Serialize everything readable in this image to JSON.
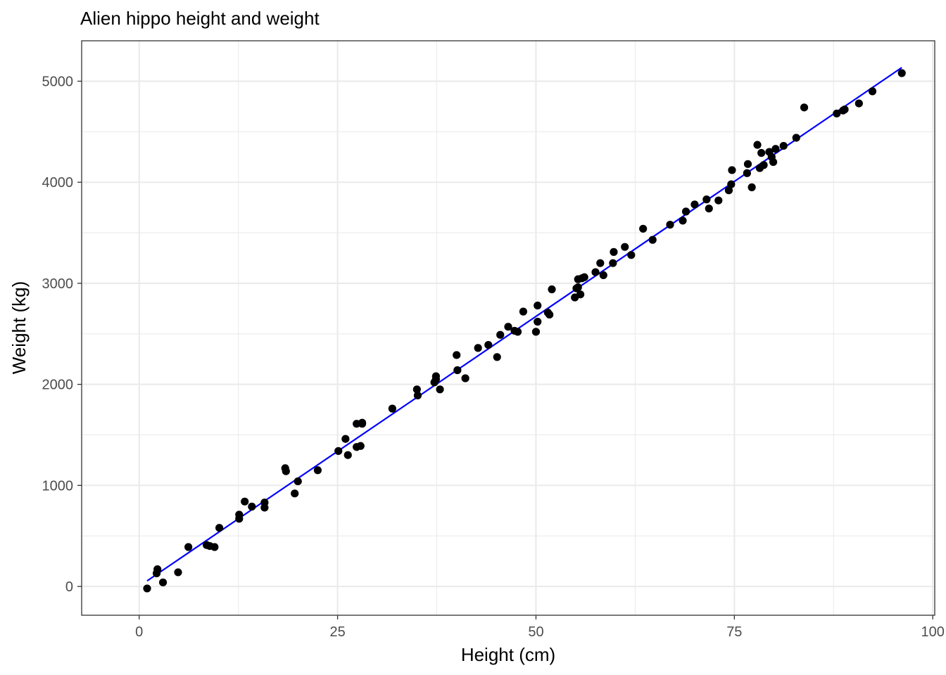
{
  "chart_data": {
    "type": "scatter",
    "title": "Alien hippo height and weight",
    "subtitle": "",
    "xlabel": "Height (cm)",
    "ylabel": "Weight (kg)",
    "xlim": [
      -7.25,
      100.25
    ],
    "ylim": [
      -285,
      5400
    ],
    "x_ticks": [
      0,
      25,
      50,
      75,
      100
    ],
    "y_ticks": [
      0,
      1000,
      2000,
      3000,
      4000,
      5000
    ],
    "x_tick_labels": [
      "0",
      "25",
      "50",
      "75",
      "100"
    ],
    "y_tick_labels": [
      "0",
      "1000",
      "2000",
      "3000",
      "4000",
      "5000"
    ],
    "grid": true,
    "legend": "none",
    "colors": {
      "points": "#000000",
      "fit_line": "#0000ff",
      "grid": "#ebebeb",
      "panel_border": "#333333"
    },
    "series": [
      {
        "kind": "points",
        "x": [
          1.0,
          2.2,
          2.3,
          3.0,
          4.9,
          6.2,
          8.5,
          8.9,
          9.5,
          10.1,
          12.6,
          12.6,
          13.3,
          14.2,
          15.8,
          15.8,
          18.4,
          18.5,
          19.6,
          20.0,
          22.5,
          25.1,
          26.0,
          26.3,
          27.4,
          27.4,
          27.9,
          28.1,
          28.1,
          31.9,
          35.0,
          35.1,
          37.2,
          37.4,
          37.4,
          37.9,
          40.0,
          40.1,
          41.1,
          42.7,
          44.0,
          45.1,
          45.5,
          46.5,
          47.3,
          47.7,
          48.4,
          50.0,
          50.2,
          50.2,
          51.5,
          51.7,
          52.0,
          54.9,
          55.1,
          55.3,
          55.3,
          55.6,
          55.8,
          56.1,
          57.5,
          58.1,
          58.5,
          59.7,
          59.8,
          61.2,
          62.0,
          63.5,
          64.7,
          66.9,
          68.5,
          68.9,
          70.0,
          71.5,
          71.8,
          73.0,
          74.3,
          74.6,
          74.7,
          76.6,
          76.7,
          77.2,
          77.9,
          78.2,
          78.4,
          78.7,
          79.4,
          79.7,
          79.9,
          80.2,
          81.2,
          82.8,
          83.8,
          87.9,
          88.7,
          88.9,
          90.7,
          92.4,
          96.1
        ],
        "y": [
          -20,
          130,
          170,
          40,
          140,
          390,
          410,
          400,
          390,
          580,
          670,
          710,
          840,
          790,
          780,
          830,
          1170,
          1140,
          920,
          1040,
          1150,
          1340,
          1460,
          1300,
          1610,
          1380,
          1390,
          1610,
          1620,
          1760,
          1950,
          1890,
          2020,
          2080,
          2050,
          1950,
          2290,
          2140,
          2060,
          2360,
          2390,
          2270,
          2490,
          2570,
          2530,
          2520,
          2720,
          2520,
          2620,
          2780,
          2710,
          2690,
          2940,
          2860,
          2950,
          2960,
          3040,
          2890,
          3050,
          3060,
          3110,
          3200,
          3080,
          3200,
          3310,
          3360,
          3280,
          3540,
          3430,
          3580,
          3620,
          3710,
          3780,
          3830,
          3740,
          3820,
          3920,
          3980,
          4120,
          4090,
          4180,
          3950,
          4370,
          4140,
          4290,
          4170,
          4300,
          4250,
          4200,
          4330,
          4360,
          4440,
          4740,
          4680,
          4710,
          4720,
          4780,
          4900,
          5080
        ]
      },
      {
        "kind": "line",
        "x": [
          1.0,
          96.1
        ],
        "y": [
          55,
          5135
        ]
      }
    ]
  }
}
